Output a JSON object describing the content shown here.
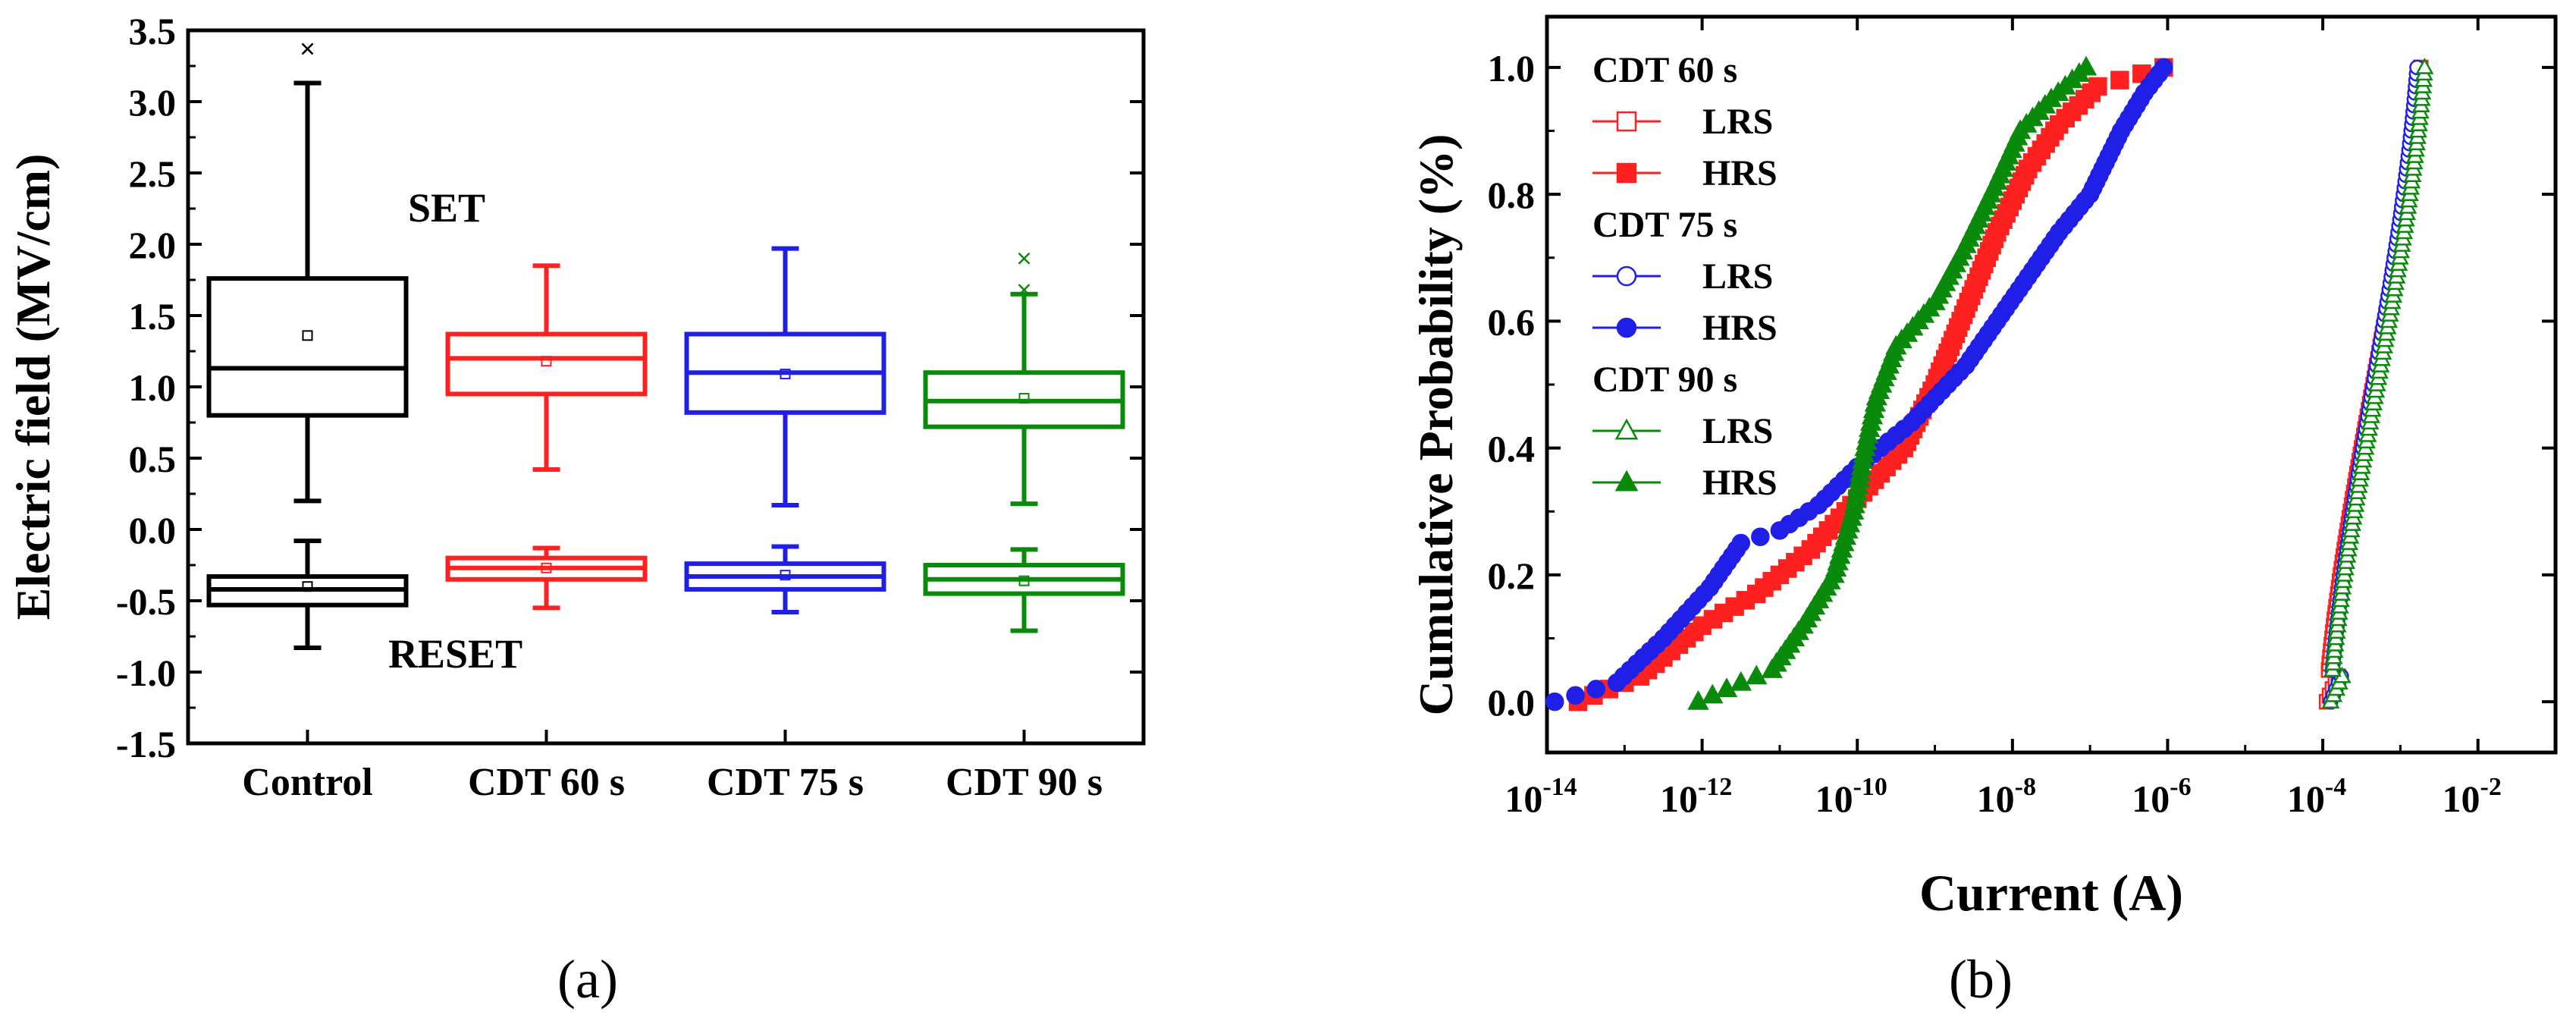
{
  "chart_data": [
    {
      "type": "box",
      "panel_label": "(a)",
      "ylabel": "Electric field (MV/cm)",
      "xlabel": "",
      "ylim": [
        -1.5,
        3.5
      ],
      "yticks": [
        "-1.5",
        "-1.0",
        "-0.5",
        "0.0",
        "0.5",
        "1.0",
        "1.5",
        "2.0",
        "2.5",
        "3.0",
        "3.5"
      ],
      "annotations": {
        "set": "SET",
        "reset": "RESET"
      },
      "categories": [
        {
          "label": "Control",
          "color": "#000000",
          "set": {
            "whisker_low": 0.2,
            "q1": 0.8,
            "median": 1.13,
            "mean": 1.36,
            "q3": 1.76,
            "whisker_high": 3.13,
            "outliers": [
              3.37
            ]
          },
          "reset": {
            "whisker_low": -0.83,
            "q1": -0.53,
            "median": -0.42,
            "mean": -0.4,
            "q3": -0.33,
            "whisker_high": -0.08,
            "outliers": []
          }
        },
        {
          "label": "CDT 60 s",
          "color": "#ff2020",
          "set": {
            "whisker_low": 0.42,
            "q1": 0.95,
            "median": 1.2,
            "mean": 1.18,
            "q3": 1.37,
            "whisker_high": 1.85,
            "outliers": []
          },
          "reset": {
            "whisker_low": -0.55,
            "q1": -0.35,
            "median": -0.27,
            "mean": -0.27,
            "q3": -0.2,
            "whisker_high": -0.13,
            "outliers": []
          }
        },
        {
          "label": "CDT 75 s",
          "color": "#1f1fe8",
          "set": {
            "whisker_low": 0.17,
            "q1": 0.82,
            "median": 1.1,
            "mean": 1.09,
            "q3": 1.37,
            "whisker_high": 1.97,
            "outliers": []
          },
          "reset": {
            "whisker_low": -0.58,
            "q1": -0.42,
            "median": -0.33,
            "mean": -0.32,
            "q3": -0.24,
            "whisker_high": -0.12,
            "outliers": []
          }
        },
        {
          "label": "CDT 90 s",
          "color": "#0a8a0a",
          "set": {
            "whisker_low": 0.18,
            "q1": 0.72,
            "median": 0.9,
            "mean": 0.92,
            "q3": 1.1,
            "whisker_high": 1.65,
            "outliers": [
              1.68,
              1.9
            ]
          },
          "reset": {
            "whisker_low": -0.71,
            "q1": -0.45,
            "median": -0.35,
            "mean": -0.36,
            "q3": -0.25,
            "whisker_high": -0.14,
            "outliers": []
          }
        }
      ]
    },
    {
      "type": "scatter",
      "panel_label": "(b)",
      "xlabel": "Current (A)",
      "ylabel": "Cumulative Probability (%)",
      "xscale": "log",
      "xlim_exp": [
        -14,
        -1
      ],
      "xtick_exps": [
        "-14",
        "-12",
        "-10",
        "-8",
        "-6",
        "-4",
        "-2"
      ],
      "ylim": [
        -0.08,
        1.08
      ],
      "yticks": [
        "0.0",
        "0.2",
        "0.4",
        "0.6",
        "0.8",
        "1.0"
      ],
      "legend_position": "top-left",
      "groups": [
        {
          "title": "CDT 60 s",
          "color": "#ff2020",
          "lrs": {
            "label": "LRS",
            "marker": "square-open",
            "log_current_range": [
              -3.95,
              -2.7
            ]
          },
          "hrs": {
            "label": "HRS",
            "marker": "square-filled",
            "curve": [
              [
                -13.6,
                0.0
              ],
              [
                -12.8,
                0.04
              ],
              [
                -12.0,
                0.12
              ],
              [
                -11.3,
                0.17
              ],
              [
                -10.6,
                0.24
              ],
              [
                -10.0,
                0.32
              ],
              [
                -9.4,
                0.4
              ],
              [
                -9.0,
                0.5
              ],
              [
                -8.6,
                0.62
              ],
              [
                -8.2,
                0.74
              ],
              [
                -7.8,
                0.84
              ],
              [
                -7.4,
                0.91
              ],
              [
                -6.9,
                0.97
              ],
              [
                -6.05,
                1.0
              ]
            ]
          }
        },
        {
          "title": "CDT 75 s",
          "color": "#1f1fe8",
          "lrs": {
            "label": "LRS",
            "marker": "circle-open",
            "log_current_range": [
              -3.9,
              -2.75
            ]
          },
          "hrs": {
            "label": "HRS",
            "marker": "circle-filled",
            "curve": [
              [
                -13.9,
                0.0
              ],
              [
                -13.1,
                0.03
              ],
              [
                -12.5,
                0.1
              ],
              [
                -11.9,
                0.18
              ],
              [
                -11.5,
                0.25
              ],
              [
                -11.0,
                0.27
              ],
              [
                -10.5,
                0.31
              ],
              [
                -10.0,
                0.37
              ],
              [
                -9.3,
                0.44
              ],
              [
                -8.6,
                0.53
              ],
              [
                -8.2,
                0.6
              ],
              [
                -7.8,
                0.67
              ],
              [
                -7.4,
                0.74
              ],
              [
                -7.0,
                0.8
              ],
              [
                -6.6,
                0.9
              ],
              [
                -6.3,
                0.96
              ],
              [
                -6.05,
                1.0
              ]
            ]
          }
        },
        {
          "title": "CDT 90 s",
          "color": "#0a8a0a",
          "lrs": {
            "label": "LRS",
            "marker": "triangle-open",
            "log_current_range": [
              -3.9,
              -2.65
            ]
          },
          "hrs": {
            "label": "HRS",
            "marker": "triangle-filled",
            "curve": [
              [
                -12.05,
                0.0
              ],
              [
                -11.5,
                0.03
              ],
              [
                -11.1,
                0.05
              ],
              [
                -10.7,
                0.12
              ],
              [
                -10.3,
                0.2
              ],
              [
                -10.05,
                0.3
              ],
              [
                -9.9,
                0.4
              ],
              [
                -9.75,
                0.48
              ],
              [
                -9.5,
                0.56
              ],
              [
                -9.0,
                0.63
              ],
              [
                -8.6,
                0.72
              ],
              [
                -8.2,
                0.82
              ],
              [
                -7.9,
                0.9
              ],
              [
                -7.5,
                0.95
              ],
              [
                -7.05,
                1.0
              ]
            ]
          }
        }
      ]
    }
  ]
}
